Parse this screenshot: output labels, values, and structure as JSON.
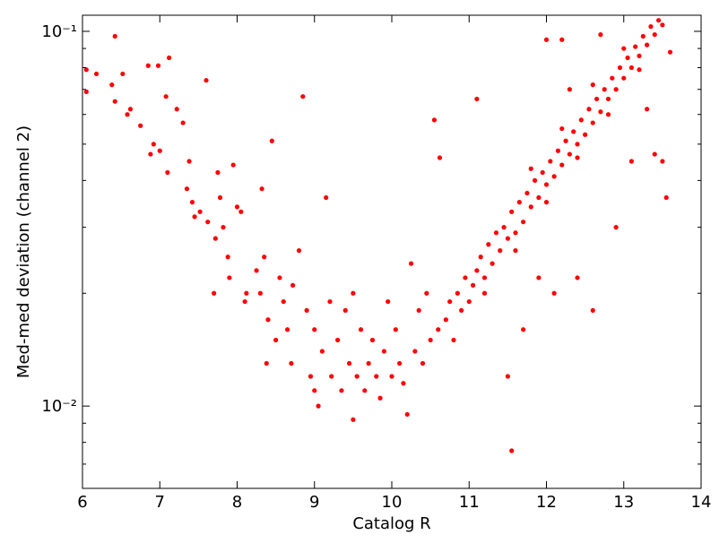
{
  "chart_data": {
    "type": "scatter",
    "xlabel": "Catalog R",
    "ylabel": "Med-med deviation (channel 2)",
    "xlim": [
      6,
      14
    ],
    "ylim": [
      0.00603,
      0.1104
    ],
    "yscale": "log",
    "xticks": [
      6,
      7,
      8,
      9,
      10,
      11,
      12,
      13,
      14
    ],
    "yticks": [
      {
        "value": 0.01,
        "label": "10⁻²"
      },
      {
        "value": 0.1,
        "label": "10⁻¹"
      }
    ],
    "yminorticks": [
      0.007,
      0.008,
      0.009,
      0.02,
      0.03,
      0.04,
      0.05,
      0.06,
      0.07,
      0.08,
      0.09
    ],
    "color": "#ff0000",
    "x": [
      6.05,
      6.05,
      6.18,
      6.38,
      6.42,
      6.42,
      6.52,
      6.58,
      6.62,
      6.75,
      6.85,
      6.88,
      6.92,
      6.98,
      7.0,
      7.08,
      7.12,
      7.1,
      7.22,
      7.3,
      7.35,
      7.38,
      7.42,
      7.45,
      7.52,
      7.6,
      7.62,
      7.7,
      7.72,
      7.75,
      7.78,
      7.82,
      7.88,
      7.9,
      7.95,
      8.0,
      8.05,
      8.1,
      8.12,
      8.25,
      8.3,
      8.32,
      8.35,
      8.4,
      8.45,
      8.38,
      8.5,
      8.55,
      8.6,
      8.65,
      8.7,
      8.72,
      8.8,
      8.85,
      8.9,
      8.95,
      9.0,
      9.0,
      9.05,
      9.1,
      9.15,
      9.2,
      9.22,
      9.3,
      9.35,
      9.4,
      9.45,
      9.5,
      9.5,
      9.55,
      9.6,
      9.65,
      9.7,
      9.75,
      9.8,
      9.85,
      9.9,
      9.95,
      10.0,
      10.05,
      10.1,
      10.15,
      10.2,
      10.25,
      10.3,
      10.35,
      10.4,
      10.45,
      10.5,
      10.55,
      10.6,
      10.62,
      10.7,
      10.75,
      10.8,
      10.85,
      10.9,
      10.95,
      11.0,
      11.05,
      11.1,
      11.1,
      11.15,
      11.2,
      11.25,
      11.3,
      11.35,
      11.4,
      11.45,
      11.5,
      11.5,
      11.55,
      11.55,
      11.6,
      11.65,
      11.7,
      11.75,
      11.8,
      11.85,
      11.9,
      11.95,
      12.0,
      12.0,
      12.05,
      12.1,
      12.15,
      12.2,
      12.25,
      12.3,
      12.35,
      12.4,
      12.45,
      12.5,
      12.55,
      12.6,
      12.65,
      12.7,
      12.75,
      12.8,
      12.85,
      12.9,
      12.95,
      13.0,
      13.05,
      13.1,
      13.15,
      13.2,
      13.25,
      13.3,
      13.35,
      13.4,
      13.45,
      13.5,
      12.6,
      12.4,
      12.9,
      13.1,
      13.4,
      13.3,
      12.2,
      11.9,
      12.1,
      13.55,
      13.5,
      12.7,
      13.6,
      11.7,
      12.3,
      11.2,
      11.6,
      12.0,
      12.4,
      12.8,
      13.2,
      11.8,
      12.2,
      12.6,
      13.0
    ],
    "y": [
      0.079,
      0.069,
      0.077,
      0.072,
      0.097,
      0.065,
      0.077,
      0.06,
      0.062,
      0.056,
      0.081,
      0.047,
      0.05,
      0.081,
      0.048,
      0.067,
      0.085,
      0.042,
      0.062,
      0.057,
      0.038,
      0.045,
      0.035,
      0.032,
      0.033,
      0.074,
      0.031,
      0.02,
      0.028,
      0.042,
      0.036,
      0.03,
      0.025,
      0.022,
      0.044,
      0.034,
      0.033,
      0.019,
      0.02,
      0.023,
      0.02,
      0.038,
      0.025,
      0.017,
      0.051,
      0.013,
      0.015,
      0.022,
      0.019,
      0.016,
      0.013,
      0.021,
      0.026,
      0.067,
      0.018,
      0.012,
      0.016,
      0.011,
      0.01,
      0.014,
      0.036,
      0.019,
      0.012,
      0.015,
      0.011,
      0.018,
      0.013,
      0.0092,
      0.02,
      0.012,
      0.016,
      0.011,
      0.013,
      0.015,
      0.012,
      0.0105,
      0.014,
      0.019,
      0.012,
      0.016,
      0.013,
      0.0115,
      0.0095,
      0.024,
      0.014,
      0.018,
      0.013,
      0.02,
      0.015,
      0.058,
      0.016,
      0.046,
      0.017,
      0.019,
      0.015,
      0.02,
      0.018,
      0.022,
      0.019,
      0.021,
      0.066,
      0.023,
      0.025,
      0.022,
      0.027,
      0.024,
      0.029,
      0.026,
      0.03,
      0.028,
      0.012,
      0.0076,
      0.033,
      0.029,
      0.035,
      0.031,
      0.037,
      0.034,
      0.04,
      0.036,
      0.042,
      0.039,
      0.095,
      0.045,
      0.041,
      0.048,
      0.044,
      0.051,
      0.047,
      0.054,
      0.05,
      0.058,
      0.053,
      0.062,
      0.057,
      0.066,
      0.061,
      0.07,
      0.066,
      0.075,
      0.07,
      0.08,
      0.075,
      0.085,
      0.08,
      0.091,
      0.086,
      0.097,
      0.092,
      0.103,
      0.098,
      0.107,
      0.104,
      0.018,
      0.022,
      0.03,
      0.045,
      0.047,
      0.062,
      0.095,
      0.022,
      0.02,
      0.036,
      0.045,
      0.098,
      0.088,
      0.016,
      0.07,
      0.02,
      0.026,
      0.035,
      0.046,
      0.06,
      0.079,
      0.043,
      0.055,
      0.072,
      0.09
    ]
  }
}
